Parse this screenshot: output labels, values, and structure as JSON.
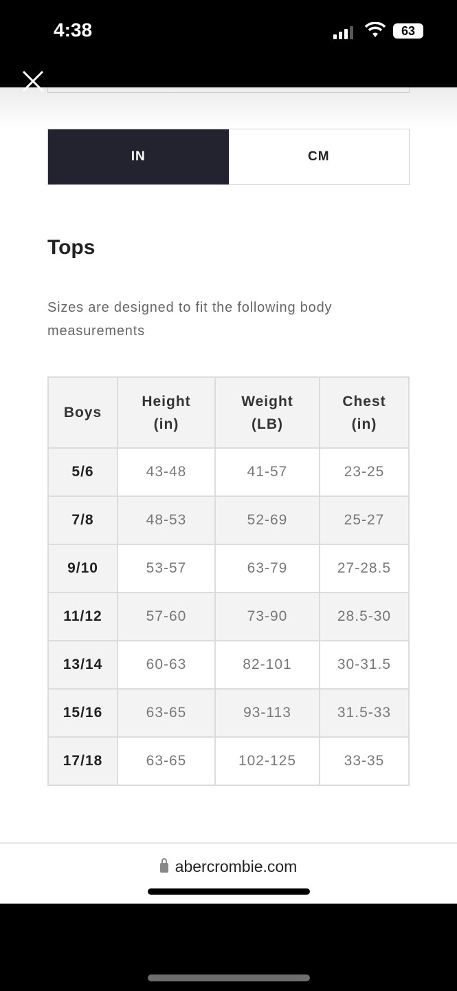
{
  "status_bar": {
    "time": "4:38",
    "battery": "63"
  },
  "units": {
    "options": [
      "IN",
      "CM"
    ],
    "selected": "IN"
  },
  "section": {
    "title": "Tops",
    "description": "Sizes are designed to fit the following body measurements"
  },
  "table": {
    "headers": [
      "Boys",
      "Height\n(in)",
      "Weight\n(LB)",
      "Chest\n(in)"
    ],
    "rows": [
      [
        "5/6",
        "43-48",
        "41-57",
        "23-25"
      ],
      [
        "7/8",
        "48-53",
        "52-69",
        "25-27"
      ],
      [
        "9/10",
        "53-57",
        "63-79",
        "27-28.5"
      ],
      [
        "11/12",
        "57-60",
        "73-90",
        "28.5-30"
      ],
      [
        "13/14",
        "60-63",
        "82-101",
        "30-31.5"
      ],
      [
        "15/16",
        "63-65",
        "93-113",
        "31.5-33"
      ],
      [
        "17/18",
        "63-65",
        "102-125",
        "33-35"
      ]
    ]
  },
  "browser": {
    "url": "abercrombie.com"
  },
  "colors": {
    "selected_toggle": "#22232f"
  }
}
